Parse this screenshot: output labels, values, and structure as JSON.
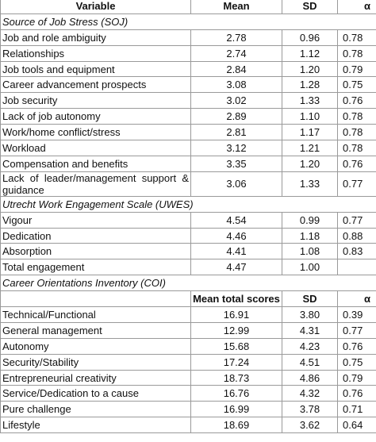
{
  "header": [
    "Variable",
    "Mean",
    "SD",
    "α"
  ],
  "sections": [
    {
      "title": "Source of Job Stress (SOJ)",
      "rows": [
        [
          "Job and role ambiguity",
          "2.78",
          "0.96",
          "0.78"
        ],
        [
          "Relationships",
          "2.74",
          "1.12",
          "0.78"
        ],
        [
          "Job tools and equipment",
          "2.84",
          "1.20",
          "0.79"
        ],
        [
          "Career advancement prospects",
          "3.08",
          "1.28",
          "0.75"
        ],
        [
          "Job security",
          "3.02",
          "1.33",
          "0.76"
        ],
        [
          "Lack of job autonomy",
          "2.89",
          "1.10",
          "0.78"
        ],
        [
          "Work/home conflict/stress",
          "2.81",
          "1.17",
          "0.78"
        ],
        [
          "Workload",
          "3.12",
          "1.21",
          "0.78"
        ],
        [
          "Compensation and benefits",
          "3.35",
          "1.20",
          "0.76"
        ],
        [
          "Lack of leader/management support & guidance",
          "3.06",
          "1.33",
          "0.77"
        ]
      ]
    },
    {
      "title": "Utrecht Work Engagement Scale (UWES)",
      "rows": [
        [
          "Vigour",
          "4.54",
          "0.99",
          "0.77"
        ],
        [
          "Dedication",
          "4.46",
          "1.18",
          "0.88"
        ],
        [
          "Absorption",
          "4.41",
          "1.08",
          "0.83"
        ],
        [
          "Total engagement",
          "4.47",
          "1.00"
        ]
      ]
    },
    {
      "title": "Career Orientations Inventory (COI)",
      "header": [
        "Mean total scores",
        "SD",
        "α"
      ],
      "rows": [
        [
          "Technical/Functional",
          "16.91",
          "3.80",
          "0.39"
        ],
        [
          "General management",
          "12.99",
          "4.31",
          "0.77"
        ],
        [
          "Autonomy",
          "15.68",
          "4.23",
          "0.76"
        ],
        [
          "Security/Stability",
          "17.24",
          "4.51",
          "0.75"
        ],
        [
          "Entrepreneurial creativity",
          "18.73",
          "4.86",
          "0.79"
        ],
        [
          "Service/Dedication to a cause",
          "16.76",
          "4.32",
          "0.76"
        ],
        [
          "Pure challenge",
          "16.99",
          "3.78",
          "0.71"
        ],
        [
          "Lifestyle",
          "18.69",
          "3.62",
          "0.64"
        ]
      ]
    }
  ]
}
